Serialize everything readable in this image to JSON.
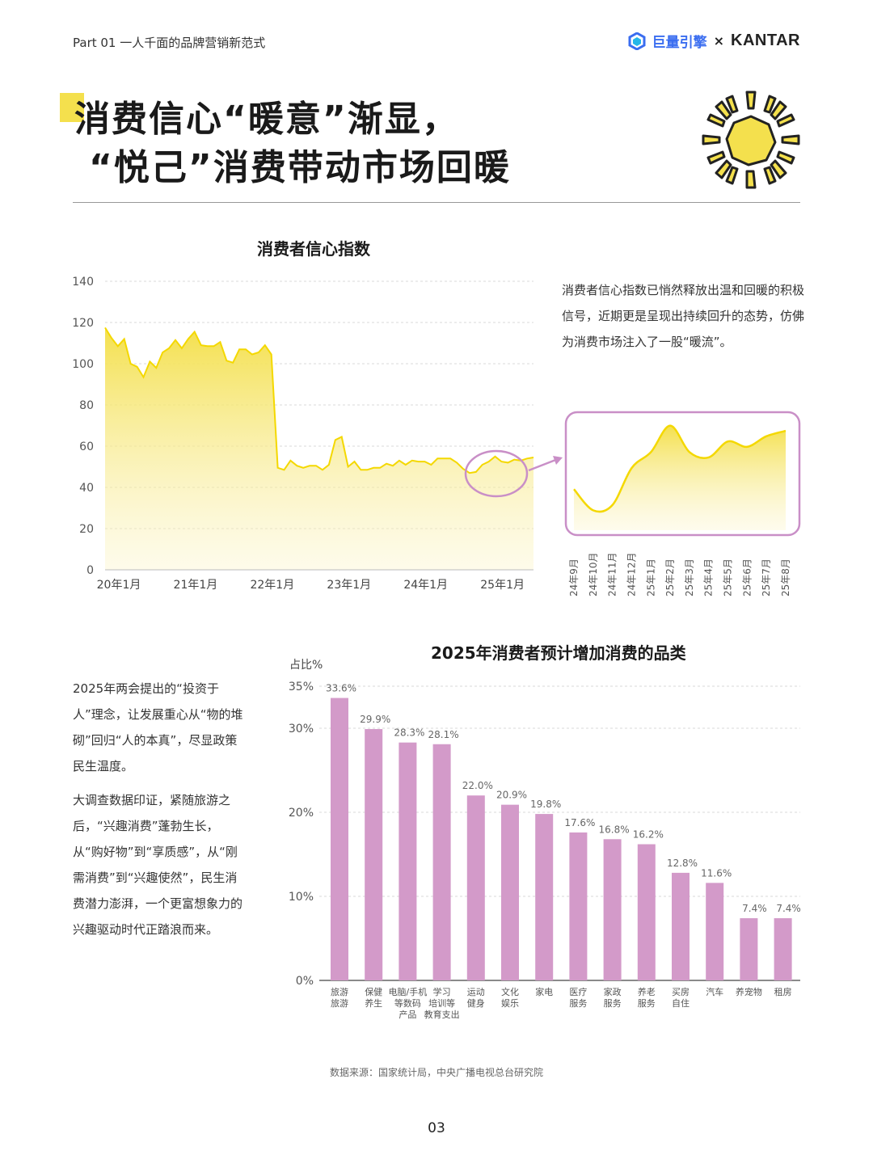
{
  "header": {
    "part_label": "Part 01  一人千面的品牌营销新范式",
    "logo_juliang": "巨量引擎",
    "logo_x": "×",
    "logo_kantar": "KANTAR"
  },
  "title": {
    "line1": "消费信心“暖意”渐显，",
    "line2": "“悦己”消费带动市场回暖"
  },
  "colors": {
    "yellow": "#f4e04d",
    "pink": "#d39ac9",
    "zoom_border": "#c98fc7",
    "grid": "#d8d8d8"
  },
  "annotation": "消费者信心指数已悄然释放出温和回暖的积极信号，近期更是呈现出持续回升的态势，仿佛为消费市场注入了一股“暖流”。",
  "side_text": {
    "p1": "2025年两会提出的“投资于人”理念，让发展重心从“物的堆砌”回归“人的本真”，尽显政策民生温度。",
    "p2": "大调查数据印证，紧随旅游之后，“兴趣消费”蓬勃生长，从“购好物”到“享质感”，从“刚需消费”到“兴趣使然”，民生消费潜力澎湃，一个更富想象力的兴趣驱动时代正踏浪而来。"
  },
  "source": "数据来源：国家统计局，中央广播电视总台研究院",
  "page_number": "03",
  "chart_data": [
    {
      "type": "area",
      "title": "消费者信心指数",
      "ylim": [
        0,
        140
      ],
      "yticks": [
        0,
        20,
        40,
        60,
        80,
        100,
        120,
        140
      ],
      "xtick_labels": [
        "20年1月",
        "21年1月",
        "22年1月",
        "23年1月",
        "24年1月",
        "25年1月"
      ],
      "grid": true,
      "series": [
        {
          "x": [
            "2020-01",
            "2020-02",
            "2020-03",
            "2020-04",
            "2020-05",
            "2020-06",
            "2020-07",
            "2020-08",
            "2020-09",
            "2020-10",
            "2020-11",
            "2020-12",
            "2021-01",
            "2021-02",
            "2021-03",
            "2021-04",
            "2021-05",
            "2021-06",
            "2021-07",
            "2021-08",
            "2021-09",
            "2021-10",
            "2021-11",
            "2021-12",
            "2022-01",
            "2022-02",
            "2022-03",
            "2022-04",
            "2022-05",
            "2022-06",
            "2022-07",
            "2022-08",
            "2022-09",
            "2022-10",
            "2022-11",
            "2022-12",
            "2023-01",
            "2023-02",
            "2023-03",
            "2023-04",
            "2023-05",
            "2023-06",
            "2023-07",
            "2023-08",
            "2023-09",
            "2023-10",
            "2023-11",
            "2023-12",
            "2024-01",
            "2024-02",
            "2024-03",
            "2024-04",
            "2024-05",
            "2024-06",
            "2024-07",
            "2024-08",
            "2024-09",
            "2024-10",
            "2024-11",
            "2024-12",
            "2025-01",
            "2025-02",
            "2025-03",
            "2025-04",
            "2025-05",
            "2025-06",
            "2025-07",
            "2025-08"
          ],
          "values": [
            117.5,
            112.5,
            108.5,
            112.0,
            100.0,
            98.5,
            93.5,
            101.0,
            98.0,
            105.5,
            107.5,
            111.5,
            107.5,
            112.0,
            115.5,
            109.0,
            108.5,
            108.5,
            110.5,
            101.5,
            100.5,
            107.0,
            107.0,
            104.5,
            105.5,
            109.0,
            104.5,
            49.5,
            48.5,
            53.0,
            50.5,
            49.5,
            50.5,
            50.5,
            48.5,
            51.0,
            63.0,
            64.5,
            50.0,
            52.5,
            48.5,
            48.5,
            49.5,
            49.5,
            51.5,
            50.5,
            53.0,
            51.0,
            53.0,
            52.5,
            52.5,
            51.0,
            54.0,
            54.0,
            54.0,
            52.0,
            49.0,
            47.0,
            47.5,
            51.0,
            52.5,
            55.0,
            52.5,
            52.0,
            53.5,
            53.0,
            54.0,
            54.5
          ]
        }
      ]
    },
    {
      "type": "area",
      "title": "",
      "xtick_labels": [
        "24年9月",
        "24年10月",
        "24年11月",
        "24年12月",
        "25年1月",
        "25年2月",
        "25年3月",
        "25年4月",
        "25年5月",
        "25年6月",
        "25年7月",
        "25年8月"
      ],
      "series": [
        {
          "x": [
            "24年9月",
            "24年10月",
            "24年11月",
            "24年12月",
            "25年1月",
            "25年2月",
            "25年3月",
            "25年4月",
            "25年5月",
            "25年6月",
            "25年7月",
            "25年8月"
          ],
          "values": [
            49.0,
            47.0,
            47.5,
            51.0,
            52.5,
            55.0,
            52.5,
            52.0,
            53.5,
            53.0,
            54.0,
            54.5
          ]
        }
      ]
    },
    {
      "type": "bar",
      "title": "2025年消费者预计增加消费的品类",
      "ylabel": "占比%",
      "ylim": [
        0,
        35
      ],
      "ytick_labels": [
        "0%",
        "10%",
        "20%",
        "30%",
        "35%"
      ],
      "yticks": [
        0,
        10,
        20,
        30,
        35
      ],
      "categories": [
        "旅游\n旅游",
        "保健\n养生",
        "电脑/手机\n等数码\n产品",
        "学习\n培训等\n教育支出",
        "运动\n健身",
        "文化\n娱乐",
        "家电",
        "医疗\n服务",
        "家政\n服务",
        "养老\n服务",
        "买房\n自住",
        "汽车",
        "养宠物",
        "租房"
      ],
      "values": [
        33.6,
        29.9,
        28.3,
        28.1,
        22.0,
        20.9,
        19.8,
        17.6,
        16.8,
        16.2,
        12.8,
        11.6,
        7.4,
        7.4
      ],
      "data_labels": [
        "33.6%",
        "29.9%",
        "28.3%",
        "28.1%",
        "22.0%",
        "20.9%",
        "19.8%",
        "17.6%",
        "16.8%",
        "16.2%",
        "12.8%",
        "11.6%",
        "7.4%",
        "7.4%"
      ],
      "grid": true
    }
  ]
}
